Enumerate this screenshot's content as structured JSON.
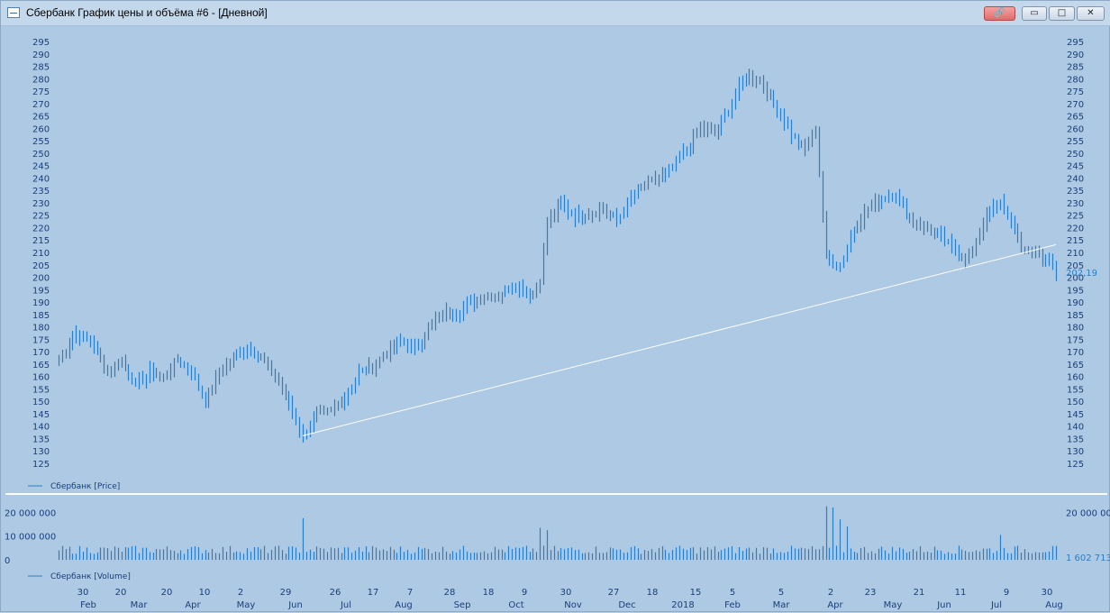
{
  "window": {
    "title": "Сбербанк График цены и объёма #6 - [Дневной]",
    "buttons": {
      "link": "🔗",
      "minimize": "▭",
      "maximize": "□",
      "close": "✕"
    }
  },
  "price_panel": {
    "legend": "Сбербанк [Price]",
    "last_price_label": "202,19",
    "y_ticks": [
      125,
      130,
      135,
      140,
      145,
      150,
      155,
      160,
      165,
      170,
      175,
      180,
      185,
      190,
      195,
      200,
      205,
      210,
      215,
      220,
      225,
      230,
      235,
      240,
      245,
      250,
      255,
      260,
      265,
      270,
      275,
      280,
      285,
      290,
      295
    ]
  },
  "volume_panel": {
    "legend": "Сбербанк [Volume]",
    "last_volume_label": "1 602 713",
    "y_labels": [
      "20 000 000",
      "10 000 000",
      "0"
    ]
  },
  "x_axis": {
    "ticks": [
      {
        "day": "30",
        "month": "Feb"
      },
      {
        "day": "20",
        "month": "Mar"
      },
      {
        "day": "20",
        "month": ""
      },
      {
        "day": "10",
        "month": "Apr"
      },
      {
        "day": "2",
        "month": "May"
      },
      {
        "day": "29",
        "month": "Jun"
      },
      {
        "day": "26",
        "month": "Jul"
      },
      {
        "day": "17",
        "month": ""
      },
      {
        "day": "7",
        "month": "Aug"
      },
      {
        "day": "28",
        "month": "Sep"
      },
      {
        "day": "18",
        "month": ""
      },
      {
        "day": "9",
        "month": "Oct"
      },
      {
        "day": "30",
        "month": "Nov"
      },
      {
        "day": "27",
        "month": "Dec"
      },
      {
        "day": "18",
        "month": ""
      },
      {
        "day": "15",
        "month": "2018"
      },
      {
        "day": "5",
        "month": "Feb"
      },
      {
        "day": "5",
        "month": "Mar"
      },
      {
        "day": "2",
        "month": "Apr"
      },
      {
        "day": "23",
        "month": ""
      },
      {
        "day": "21",
        "month": "May"
      },
      {
        "day": "11",
        "month": "Jun"
      },
      {
        "day": "9",
        "month": "Jul"
      },
      {
        "day": "30",
        "month": "Aug"
      }
    ]
  },
  "colors": {
    "background": "#adc9e3",
    "bars": "#2a7fc6",
    "axis_text": "#1a3f7a",
    "trendline": "#ffffff"
  },
  "chart_data": {
    "type": "bar",
    "price_series": {
      "name": "Сбербанк [Price]",
      "ylim": [
        125,
        295
      ],
      "anchors": [
        [
          0,
          167
        ],
        [
          5,
          178
        ],
        [
          10,
          173
        ],
        [
          14,
          162
        ],
        [
          18,
          167
        ],
        [
          22,
          157
        ],
        [
          26,
          162
        ],
        [
          30,
          160
        ],
        [
          34,
          167
        ],
        [
          38,
          162
        ],
        [
          42,
          150
        ],
        [
          46,
          162
        ],
        [
          50,
          168
        ],
        [
          54,
          172
        ],
        [
          58,
          168
        ],
        [
          62,
          160
        ],
        [
          66,
          150
        ],
        [
          70,
          136
        ],
        [
          74,
          145
        ],
        [
          78,
          146
        ],
        [
          82,
          152
        ],
        [
          86,
          162
        ],
        [
          90,
          164
        ],
        [
          94,
          170
        ],
        [
          98,
          175
        ],
        [
          102,
          171
        ],
        [
          106,
          180
        ],
        [
          110,
          186
        ],
        [
          114,
          186
        ],
        [
          118,
          190
        ],
        [
          122,
          193
        ],
        [
          126,
          193
        ],
        [
          130,
          197
        ],
        [
          134,
          195
        ],
        [
          136,
          193
        ],
        [
          138,
          200
        ],
        [
          140,
          222
        ],
        [
          144,
          230
        ],
        [
          148,
          225
        ],
        [
          152,
          226
        ],
        [
          156,
          228
        ],
        [
          160,
          223
        ],
        [
          164,
          232
        ],
        [
          168,
          238
        ],
        [
          172,
          240
        ],
        [
          176,
          245
        ],
        [
          180,
          252
        ],
        [
          184,
          260
        ],
        [
          188,
          258
        ],
        [
          192,
          268
        ],
        [
          196,
          280
        ],
        [
          198,
          282
        ],
        [
          202,
          278
        ],
        [
          206,
          268
        ],
        [
          210,
          258
        ],
        [
          214,
          252
        ],
        [
          217,
          260
        ],
        [
          220,
          208
        ],
        [
          224,
          205
        ],
        [
          228,
          220
        ],
        [
          232,
          228
        ],
        [
          236,
          232
        ],
        [
          240,
          234
        ],
        [
          244,
          224
        ],
        [
          248,
          220
        ],
        [
          252,
          218
        ],
        [
          256,
          212
        ],
        [
          260,
          208
        ],
        [
          262,
          210
        ],
        [
          266,
          226
        ],
        [
          270,
          230
        ],
        [
          274,
          220
        ],
        [
          276,
          210
        ],
        [
          280,
          212
        ],
        [
          284,
          206
        ],
        [
          286,
          202
        ]
      ]
    },
    "volume_series": {
      "name": "Сбербанк [Volume]",
      "ylim": [
        0,
        22000000
      ],
      "spikes": [
        {
          "i": 70,
          "v": 17500000
        },
        {
          "i": 138,
          "v": 13500000
        },
        {
          "i": 140,
          "v": 12500000
        },
        {
          "i": 220,
          "v": 22500000
        },
        {
          "i": 222,
          "v": 22000000
        },
        {
          "i": 224,
          "v": 17000000
        },
        {
          "i": 226,
          "v": 14000000
        },
        {
          "i": 270,
          "v": 10500000
        }
      ]
    },
    "trendline": {
      "from_index": 70,
      "from_value": 136.5,
      "to_index": 286,
      "to_value": 213.5
    }
  }
}
